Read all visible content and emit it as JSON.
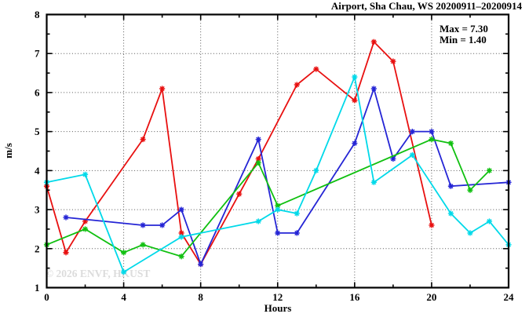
{
  "watermark": "© 2026 ENVF, HKUST",
  "chart_data": {
    "type": "line",
    "title": "Airport, Sha Chau, WS 20200911–20200914",
    "xlabel": "Hours",
    "ylabel": "m/s",
    "xlim": [
      0,
      24
    ],
    "ylim": [
      1,
      8
    ],
    "x_major_ticks": [
      0,
      4,
      8,
      12,
      16,
      20,
      24
    ],
    "x_minor_step": 2,
    "y_major_ticks": [
      1,
      2,
      3,
      4,
      5,
      6,
      7,
      8
    ],
    "y_minor_step": 0.5,
    "grid": "dotted-at-major-ticks",
    "legend": "none",
    "marker": "asterisk",
    "max": 7.3,
    "min": 1.4,
    "annotations": {
      "max_label": "Max = 7.30",
      "min_label": "Min = 1.40"
    },
    "series": [
      {
        "name": "series-red",
        "color": "#e81010",
        "points": [
          [
            0,
            3.6
          ],
          [
            1,
            1.9
          ],
          [
            2,
            2.7
          ],
          [
            5,
            4.8
          ],
          [
            6,
            6.1
          ],
          [
            7,
            2.4
          ],
          [
            8,
            1.6
          ],
          [
            10,
            3.4
          ],
          [
            11,
            4.3
          ],
          [
            13,
            6.2
          ],
          [
            14,
            6.6
          ],
          [
            16,
            5.8
          ],
          [
            17,
            7.3
          ],
          [
            18,
            6.8
          ],
          [
            20,
            2.6
          ]
        ]
      },
      {
        "name": "series-blue",
        "color": "#2525d5",
        "points": [
          [
            1,
            2.8
          ],
          [
            5,
            2.6
          ],
          [
            6,
            2.6
          ],
          [
            7,
            3.0
          ],
          [
            8,
            1.6
          ],
          [
            11,
            4.8
          ],
          [
            12,
            2.4
          ],
          [
            13,
            2.4
          ],
          [
            16,
            4.7
          ],
          [
            17,
            6.1
          ],
          [
            18,
            4.3
          ],
          [
            19,
            5.0
          ],
          [
            20,
            5.0
          ],
          [
            21,
            3.6
          ],
          [
            24,
            3.7
          ]
        ]
      },
      {
        "name": "series-green",
        "color": "#10c010",
        "points": [
          [
            0,
            2.1
          ],
          [
            2,
            2.5
          ],
          [
            4,
            1.9
          ],
          [
            5,
            2.1
          ],
          [
            7,
            1.8
          ],
          [
            11,
            4.2
          ],
          [
            12,
            3.1
          ],
          [
            20,
            4.8
          ],
          [
            21,
            4.7
          ],
          [
            22,
            3.5
          ],
          [
            23,
            4.0
          ]
        ]
      },
      {
        "name": "series-cyan",
        "color": "#00d9e9",
        "points": [
          [
            0,
            3.7
          ],
          [
            2,
            3.9
          ],
          [
            4,
            1.4
          ],
          [
            7,
            2.3
          ],
          [
            11,
            2.7
          ],
          [
            12,
            3.0
          ],
          [
            13,
            2.9
          ],
          [
            14,
            4.0
          ],
          [
            16,
            6.4
          ],
          [
            17,
            3.7
          ],
          [
            19,
            4.4
          ],
          [
            21,
            2.9
          ],
          [
            22,
            2.4
          ],
          [
            23,
            2.7
          ],
          [
            24,
            2.1
          ]
        ]
      }
    ]
  }
}
